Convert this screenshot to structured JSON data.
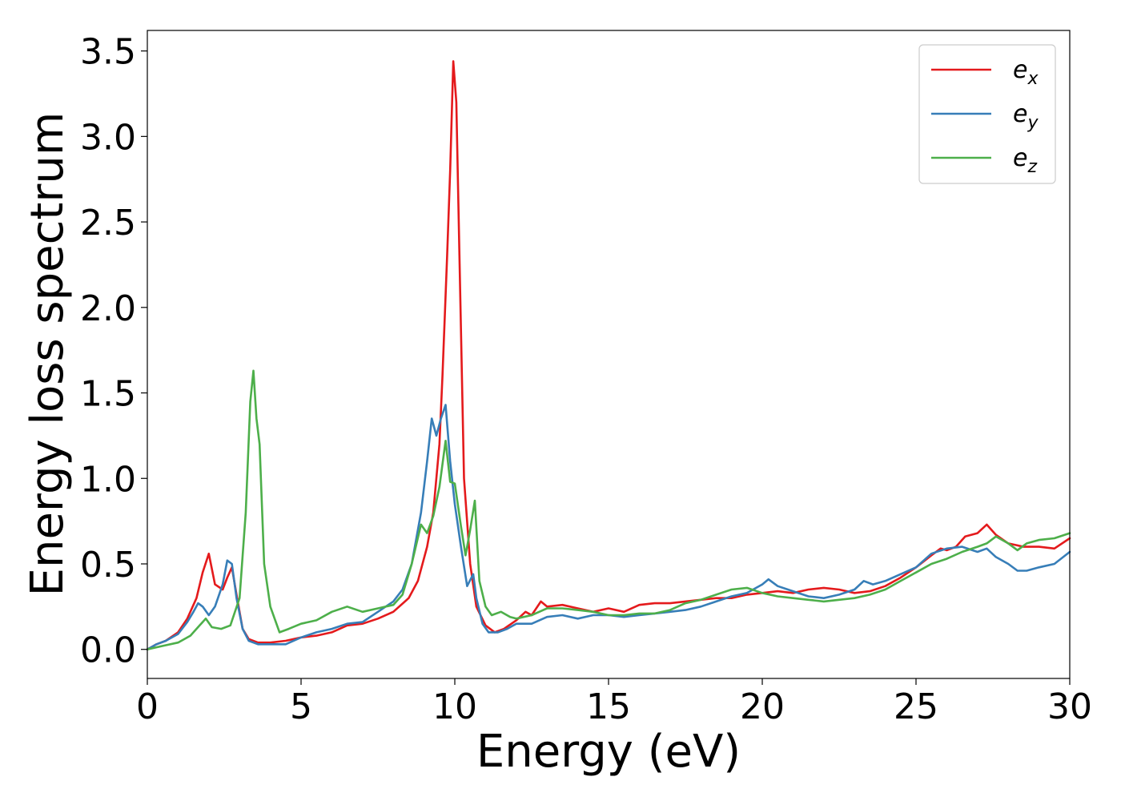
{
  "chart_data": {
    "type": "line",
    "xlabel": "Energy (eV)",
    "ylabel": "Energy loss spectrum",
    "xlim": [
      0,
      30
    ],
    "ylim": [
      -0.17,
      3.62
    ],
    "xticks": [
      0,
      5,
      10,
      15,
      20,
      25,
      30
    ],
    "xtick_labels": [
      "0",
      "5",
      "10",
      "15",
      "20",
      "25",
      "30"
    ],
    "yticks": [
      0.0,
      0.5,
      1.0,
      1.5,
      2.0,
      2.5,
      3.0,
      3.5
    ],
    "ytick_labels": [
      "0.0",
      "0.5",
      "1.0",
      "1.5",
      "2.0",
      "2.5",
      "3.0",
      "3.5"
    ],
    "grid": false,
    "legend_position": "top-right",
    "series": [
      {
        "name": "ex",
        "label_base": "e",
        "label_sub": "x",
        "color": "#e41a1c",
        "x": [
          0,
          0.3,
          0.6,
          1.0,
          1.3,
          1.6,
          1.8,
          2.0,
          2.2,
          2.45,
          2.6,
          2.75,
          2.9,
          3.1,
          3.3,
          3.6,
          4.0,
          4.5,
          5.0,
          5.5,
          6.0,
          6.5,
          7.0,
          7.5,
          8.0,
          8.5,
          8.8,
          9.1,
          9.3,
          9.5,
          9.6,
          9.75,
          9.85,
          9.95,
          10.05,
          10.15,
          10.3,
          10.5,
          10.7,
          11.0,
          11.3,
          11.6,
          12.0,
          12.3,
          12.5,
          12.8,
          13.0,
          13.5,
          14.0,
          14.5,
          15.0,
          15.5,
          16.0,
          16.5,
          17.0,
          17.5,
          18.0,
          18.5,
          19.0,
          19.5,
          20.0,
          20.5,
          21.0,
          21.5,
          22.0,
          22.5,
          23.0,
          23.5,
          24.0,
          24.5,
          25.0,
          25.5,
          25.8,
          26.0,
          26.3,
          26.6,
          27.0,
          27.3,
          27.6,
          28.0,
          28.5,
          29.0,
          29.5,
          30.0
        ],
        "y": [
          0.0,
          0.03,
          0.05,
          0.1,
          0.18,
          0.3,
          0.45,
          0.56,
          0.38,
          0.35,
          0.42,
          0.48,
          0.32,
          0.12,
          0.06,
          0.04,
          0.04,
          0.05,
          0.07,
          0.08,
          0.1,
          0.14,
          0.15,
          0.18,
          0.22,
          0.3,
          0.4,
          0.6,
          0.8,
          1.2,
          1.6,
          2.3,
          2.8,
          3.44,
          3.2,
          2.3,
          1.0,
          0.5,
          0.25,
          0.14,
          0.1,
          0.12,
          0.17,
          0.22,
          0.2,
          0.28,
          0.25,
          0.26,
          0.24,
          0.22,
          0.24,
          0.22,
          0.26,
          0.27,
          0.27,
          0.28,
          0.29,
          0.3,
          0.3,
          0.32,
          0.33,
          0.34,
          0.33,
          0.35,
          0.36,
          0.35,
          0.33,
          0.34,
          0.37,
          0.42,
          0.48,
          0.55,
          0.59,
          0.58,
          0.6,
          0.66,
          0.68,
          0.73,
          0.67,
          0.62,
          0.6,
          0.6,
          0.59,
          0.65
        ]
      },
      {
        "name": "ey",
        "label_base": "e",
        "label_sub": "y",
        "color": "#377eb8",
        "x": [
          0,
          0.3,
          0.6,
          1.0,
          1.3,
          1.5,
          1.65,
          1.8,
          2.0,
          2.2,
          2.45,
          2.6,
          2.75,
          2.9,
          3.1,
          3.3,
          3.6,
          4.0,
          4.5,
          5.0,
          5.5,
          6.0,
          6.5,
          7.0,
          7.5,
          8.0,
          8.3,
          8.6,
          8.9,
          9.1,
          9.25,
          9.4,
          9.55,
          9.7,
          9.85,
          10.0,
          10.2,
          10.4,
          10.6,
          10.7,
          10.9,
          11.1,
          11.4,
          11.7,
          12.0,
          12.5,
          13.0,
          13.5,
          14.0,
          14.5,
          15.0,
          15.5,
          16.0,
          16.5,
          17.0,
          17.5,
          18.0,
          18.5,
          19.0,
          19.5,
          20.0,
          20.2,
          20.5,
          21.0,
          21.5,
          22.0,
          22.5,
          23.0,
          23.3,
          23.6,
          24.0,
          24.5,
          25.0,
          25.5,
          26.0,
          26.5,
          27.0,
          27.3,
          27.6,
          28.0,
          28.3,
          28.6,
          29.0,
          29.5,
          30.0
        ],
        "y": [
          0.0,
          0.03,
          0.05,
          0.09,
          0.16,
          0.22,
          0.27,
          0.25,
          0.2,
          0.25,
          0.38,
          0.52,
          0.5,
          0.3,
          0.12,
          0.05,
          0.03,
          0.03,
          0.03,
          0.07,
          0.1,
          0.12,
          0.15,
          0.16,
          0.22,
          0.28,
          0.35,
          0.5,
          0.8,
          1.1,
          1.35,
          1.25,
          1.35,
          1.43,
          1.1,
          0.85,
          0.6,
          0.37,
          0.44,
          0.3,
          0.15,
          0.1,
          0.1,
          0.12,
          0.15,
          0.15,
          0.19,
          0.2,
          0.18,
          0.2,
          0.2,
          0.19,
          0.2,
          0.21,
          0.22,
          0.23,
          0.25,
          0.28,
          0.31,
          0.33,
          0.38,
          0.41,
          0.37,
          0.34,
          0.31,
          0.3,
          0.32,
          0.35,
          0.4,
          0.38,
          0.4,
          0.44,
          0.48,
          0.56,
          0.59,
          0.6,
          0.57,
          0.59,
          0.54,
          0.5,
          0.46,
          0.46,
          0.48,
          0.5,
          0.57
        ]
      },
      {
        "name": "ez",
        "label_base": "e",
        "label_sub": "z",
        "color": "#4daf4a",
        "x": [
          0,
          0.5,
          1.0,
          1.4,
          1.7,
          1.9,
          2.1,
          2.4,
          2.7,
          3.0,
          3.2,
          3.35,
          3.45,
          3.55,
          3.65,
          3.8,
          4.0,
          4.3,
          4.6,
          5.0,
          5.5,
          6.0,
          6.5,
          7.0,
          7.5,
          8.0,
          8.3,
          8.6,
          8.9,
          9.1,
          9.3,
          9.5,
          9.7,
          9.85,
          10.0,
          10.2,
          10.35,
          10.5,
          10.65,
          10.8,
          11.0,
          11.2,
          11.5,
          11.8,
          12.0,
          12.5,
          13.0,
          13.5,
          14.0,
          14.5,
          15.0,
          15.5,
          16.0,
          16.5,
          17.0,
          17.5,
          18.0,
          18.5,
          19.0,
          19.5,
          20.0,
          20.5,
          21.0,
          21.5,
          22.0,
          22.5,
          23.0,
          23.5,
          24.0,
          24.5,
          25.0,
          25.5,
          26.0,
          26.5,
          27.0,
          27.3,
          27.6,
          28.0,
          28.3,
          28.6,
          29.0,
          29.5,
          30.0
        ],
        "y": [
          0.0,
          0.02,
          0.04,
          0.08,
          0.14,
          0.18,
          0.13,
          0.12,
          0.14,
          0.3,
          0.8,
          1.45,
          1.63,
          1.35,
          1.2,
          0.5,
          0.25,
          0.1,
          0.12,
          0.15,
          0.17,
          0.22,
          0.25,
          0.22,
          0.24,
          0.26,
          0.32,
          0.5,
          0.73,
          0.68,
          0.78,
          0.95,
          1.22,
          0.98,
          0.97,
          0.72,
          0.55,
          0.7,
          0.87,
          0.4,
          0.25,
          0.2,
          0.22,
          0.19,
          0.18,
          0.2,
          0.24,
          0.24,
          0.23,
          0.22,
          0.2,
          0.2,
          0.21,
          0.21,
          0.23,
          0.27,
          0.29,
          0.32,
          0.35,
          0.36,
          0.33,
          0.31,
          0.3,
          0.29,
          0.28,
          0.29,
          0.3,
          0.32,
          0.35,
          0.4,
          0.45,
          0.5,
          0.53,
          0.57,
          0.6,
          0.62,
          0.66,
          0.62,
          0.58,
          0.62,
          0.64,
          0.65,
          0.68
        ]
      }
    ]
  }
}
